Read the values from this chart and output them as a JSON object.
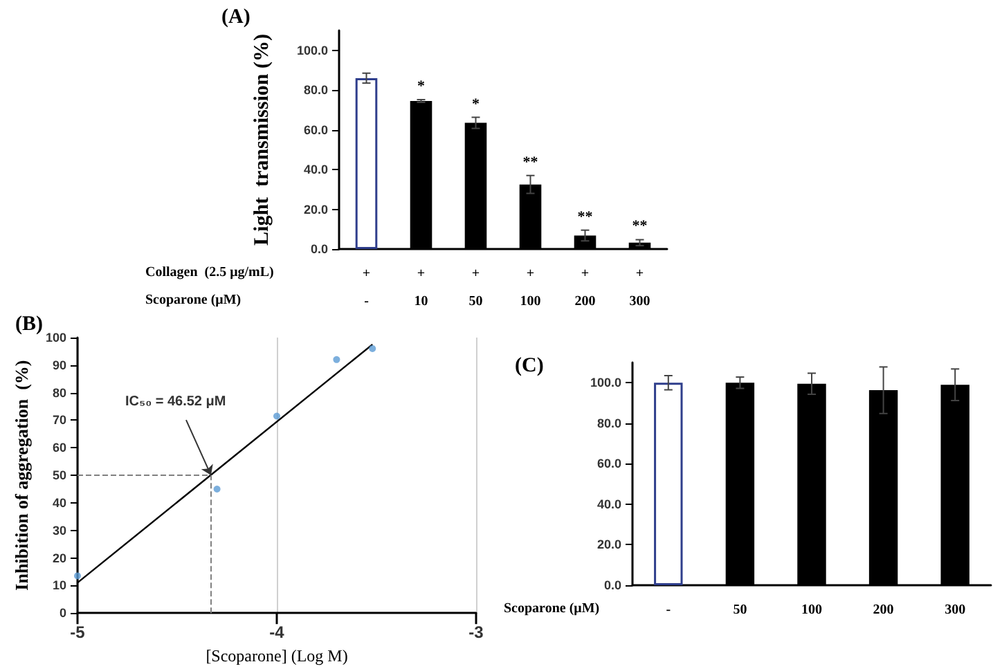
{
  "chart_data": [
    {
      "type": "bar",
      "title": "(A)",
      "ylabel": "Light  transmission (%)",
      "categories": [
        "+\n-",
        "+\n10",
        "+\n50",
        "+\n100",
        "+\n200",
        "+\n300"
      ],
      "values": [
        86.0,
        74.5,
        63.5,
        32.5,
        6.8,
        3.2
      ],
      "errors": [
        2.5,
        0.7,
        2.8,
        4.5,
        2.7,
        1.5
      ],
      "value_labels": [
        null,
        "*",
        "*",
        "**",
        "**",
        "**"
      ],
      "colors": [
        "#ffffff",
        "#000000",
        "#000000",
        "#000000",
        "#000000",
        "#000000"
      ],
      "annotations": [
        "Collagen  (2.5 μg/mL)",
        "Scoparone (μM)"
      ],
      "ylim": [
        0,
        110
      ],
      "yticks": [
        {
          "value": 0,
          "label": "0.0"
        },
        {
          "value": 20,
          "label": "20.0"
        },
        {
          "value": 40,
          "label": "40.0"
        },
        {
          "value": 60,
          "label": "60.0"
        },
        {
          "value": 80,
          "label": "80.0"
        },
        {
          "value": 100,
          "label": "100.0"
        }
      ],
      "grid": false
    },
    {
      "type": "scatter",
      "title": "(B)",
      "xlabel": "[Scoparone] (Log M)",
      "ylabel": "Inhibition of aggregation  (%)",
      "series": [
        {
          "type": "scatter",
          "marker": "circle",
          "color": "#5b9bd5",
          "x": [
            -5,
            -4.3,
            -4,
            -3.7,
            -3.52
          ],
          "values": [
            13.5,
            45,
            71.5,
            92,
            96
          ]
        },
        {
          "type": "line",
          "marker": "none",
          "color": "#000000",
          "x": [
            -5,
            -3.52
          ],
          "values": [
            11,
            97.5
          ]
        }
      ],
      "annotations": [
        {
          "text": "IC₅₀ = 46.52 μM",
          "x": -4.33,
          "y": 50
        }
      ],
      "ref_lines": [
        {
          "axis": "x",
          "value": -4.33,
          "color": "#808080",
          "line_style": "dashed"
        },
        {
          "axis": "y",
          "value": 50,
          "color": "#808080",
          "line_style": "dashed"
        }
      ],
      "xlim": [
        -5,
        -3
      ],
      "xticks": [
        -5,
        -4,
        -3
      ],
      "ylim": [
        0,
        100
      ],
      "yticks": [
        0,
        10,
        20,
        30,
        40,
        50,
        60,
        70,
        80,
        90,
        100
      ],
      "grid": "x"
    },
    {
      "type": "bar",
      "title": "(C)",
      "categories": [
        "-",
        "50",
        "100",
        "200",
        "300"
      ],
      "values": [
        100.0,
        100.0,
        99.5,
        96.3,
        99.0
      ],
      "errors": [
        3.5,
        2.8,
        5.2,
        11.5,
        7.8
      ],
      "colors": [
        "#ffffff",
        "#000000",
        "#000000",
        "#000000",
        "#000000"
      ],
      "annotations": [
        "Scoparone (μM)"
      ],
      "ylim": [
        0,
        110
      ],
      "yticks": [
        {
          "value": 0,
          "label": "0.0"
        },
        {
          "value": 20,
          "label": "20.0"
        },
        {
          "value": 40,
          "label": "40.0"
        },
        {
          "value": 60,
          "label": "60.0"
        },
        {
          "value": 80,
          "label": "80.0"
        },
        {
          "value": 100,
          "label": "100.0"
        }
      ],
      "grid": false
    }
  ]
}
